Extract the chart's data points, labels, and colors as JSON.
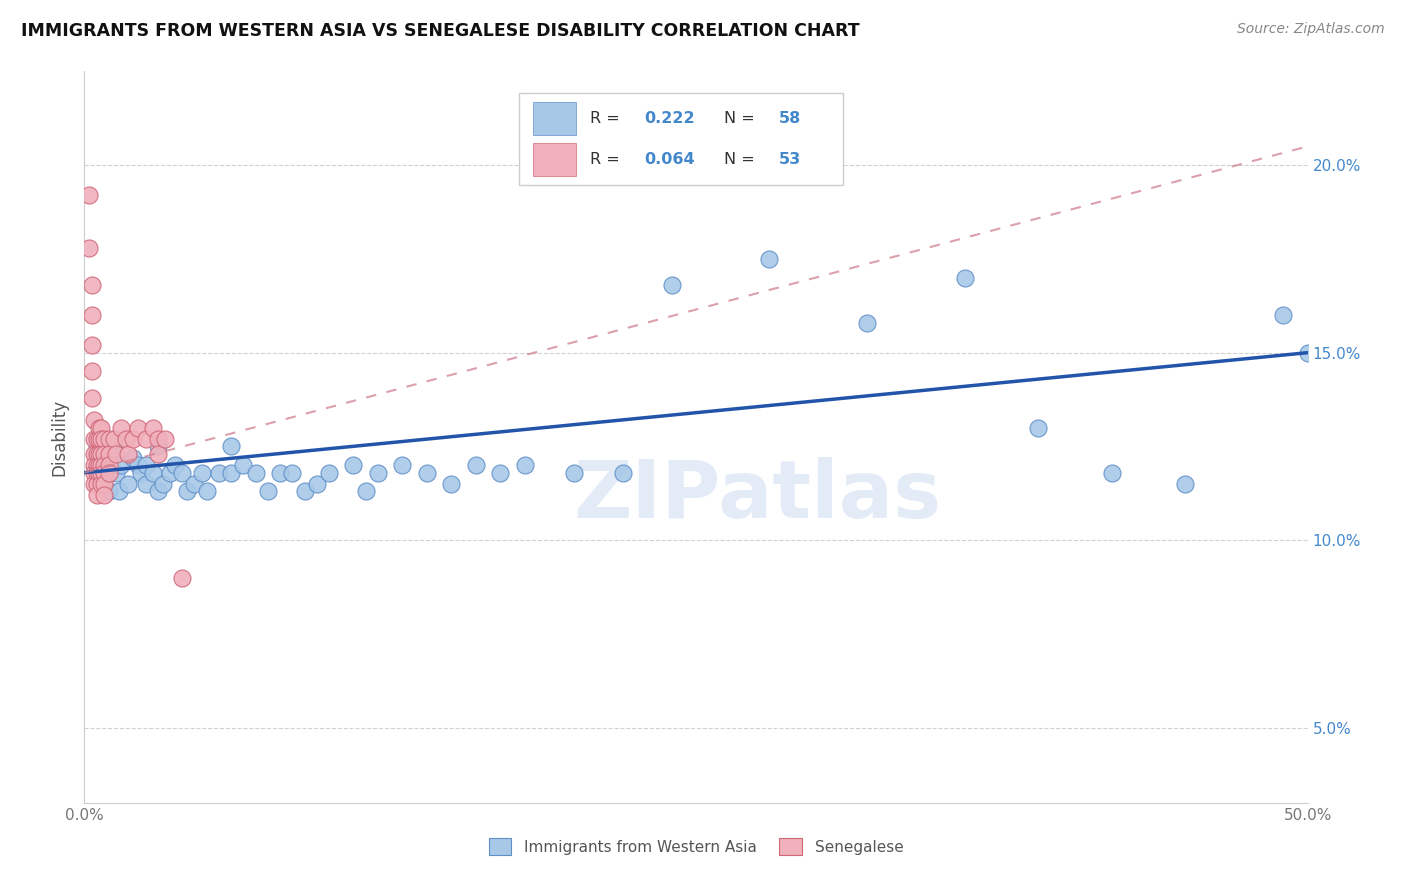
{
  "title": "IMMIGRANTS FROM WESTERN ASIA VS SENEGALESE DISABILITY CORRELATION CHART",
  "source": "Source: ZipAtlas.com",
  "ylabel": "Disability",
  "xlim": [
    0.0,
    0.5
  ],
  "ylim": [
    0.03,
    0.225
  ],
  "watermark": "ZIPatlas",
  "color_blue": "#a8c8e8",
  "color_pink": "#f0b0bc",
  "color_blue_edge": "#6090c8",
  "color_pink_edge": "#d06878",
  "color_line_blue": "#2255aa",
  "color_line_pink": "#d08090",
  "color_tick_blue": "#4488cc",
  "blue_x": [
    0.005,
    0.007,
    0.008,
    0.01,
    0.01,
    0.01,
    0.012,
    0.013,
    0.014,
    0.015,
    0.018,
    0.02,
    0.022,
    0.023,
    0.025,
    0.025,
    0.028,
    0.03,
    0.03,
    0.032,
    0.035,
    0.037,
    0.04,
    0.042,
    0.045,
    0.048,
    0.05,
    0.055,
    0.06,
    0.06,
    0.065,
    0.07,
    0.075,
    0.08,
    0.085,
    0.09,
    0.095,
    0.1,
    0.11,
    0.115,
    0.12,
    0.13,
    0.14,
    0.15,
    0.16,
    0.17,
    0.18,
    0.2,
    0.22,
    0.24,
    0.28,
    0.32,
    0.36,
    0.39,
    0.42,
    0.45,
    0.49,
    0.5
  ],
  "blue_y": [
    0.125,
    0.12,
    0.117,
    0.113,
    0.118,
    0.122,
    0.125,
    0.118,
    0.113,
    0.12,
    0.115,
    0.122,
    0.12,
    0.118,
    0.12,
    0.115,
    0.118,
    0.113,
    0.125,
    0.115,
    0.118,
    0.12,
    0.118,
    0.113,
    0.115,
    0.118,
    0.113,
    0.118,
    0.125,
    0.118,
    0.12,
    0.118,
    0.113,
    0.118,
    0.118,
    0.113,
    0.115,
    0.118,
    0.12,
    0.113,
    0.118,
    0.12,
    0.118,
    0.115,
    0.12,
    0.118,
    0.12,
    0.118,
    0.118,
    0.168,
    0.175,
    0.158,
    0.17,
    0.13,
    0.118,
    0.115,
    0.16,
    0.15
  ],
  "pink_x": [
    0.002,
    0.002,
    0.003,
    0.003,
    0.003,
    0.003,
    0.003,
    0.004,
    0.004,
    0.004,
    0.004,
    0.004,
    0.004,
    0.005,
    0.005,
    0.005,
    0.005,
    0.005,
    0.005,
    0.006,
    0.006,
    0.006,
    0.006,
    0.006,
    0.007,
    0.007,
    0.007,
    0.007,
    0.007,
    0.007,
    0.008,
    0.008,
    0.008,
    0.008,
    0.008,
    0.008,
    0.01,
    0.01,
    0.01,
    0.01,
    0.012,
    0.013,
    0.015,
    0.017,
    0.018,
    0.02,
    0.022,
    0.025,
    0.028,
    0.03,
    0.03,
    0.033,
    0.04
  ],
  "pink_y": [
    0.192,
    0.178,
    0.168,
    0.16,
    0.152,
    0.145,
    0.138,
    0.132,
    0.127,
    0.123,
    0.12,
    0.118,
    0.115,
    0.127,
    0.123,
    0.12,
    0.118,
    0.115,
    0.112,
    0.13,
    0.127,
    0.123,
    0.12,
    0.118,
    0.13,
    0.127,
    0.123,
    0.12,
    0.118,
    0.115,
    0.127,
    0.123,
    0.12,
    0.118,
    0.115,
    0.112,
    0.127,
    0.123,
    0.12,
    0.118,
    0.127,
    0.123,
    0.13,
    0.127,
    0.123,
    0.127,
    0.13,
    0.127,
    0.13,
    0.127,
    0.123,
    0.127,
    0.09
  ],
  "blue_line_x": [
    0.0,
    0.5
  ],
  "blue_line_y": [
    0.118,
    0.15
  ],
  "pink_line_x": [
    0.0,
    0.5
  ],
  "pink_line_y": [
    0.118,
    0.205
  ]
}
